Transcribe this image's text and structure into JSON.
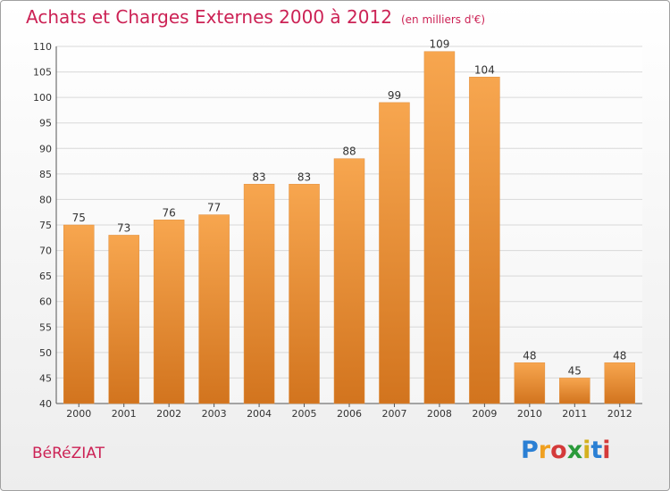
{
  "title": "Achats et Charges Externes 2000 à 2012",
  "unit": "(en milliers d'€)",
  "commune": "BéRéZIAT",
  "logo": {
    "letters": [
      "P",
      "r",
      "o",
      "x",
      "i",
      "t",
      "i"
    ],
    "colors": [
      "#2a7fd4",
      "#f0a020",
      "#d43a3a",
      "#2a9a3a",
      "#d4b020",
      "#2a7fd4",
      "#d43a3a"
    ]
  },
  "colors": {
    "bar_light": "#f7a64f",
    "bar_dark": "#d2741e",
    "accent": "#cc2255"
  },
  "chart_data": {
    "type": "bar",
    "categories": [
      "2000",
      "2001",
      "2002",
      "2003",
      "2004",
      "2005",
      "2006",
      "2007",
      "2008",
      "2009",
      "2010",
      "2011",
      "2012"
    ],
    "values": [
      75,
      73,
      76,
      77,
      83,
      83,
      88,
      99,
      109,
      104,
      48,
      45,
      48
    ],
    "title": "Achats et Charges Externes 2000 à 2012",
    "ylim": [
      40,
      110
    ],
    "yticks": [
      40,
      45,
      50,
      55,
      60,
      65,
      70,
      75,
      80,
      85,
      90,
      95,
      100,
      105,
      110
    ],
    "grid": true,
    "xlabel": "",
    "ylabel": ""
  }
}
